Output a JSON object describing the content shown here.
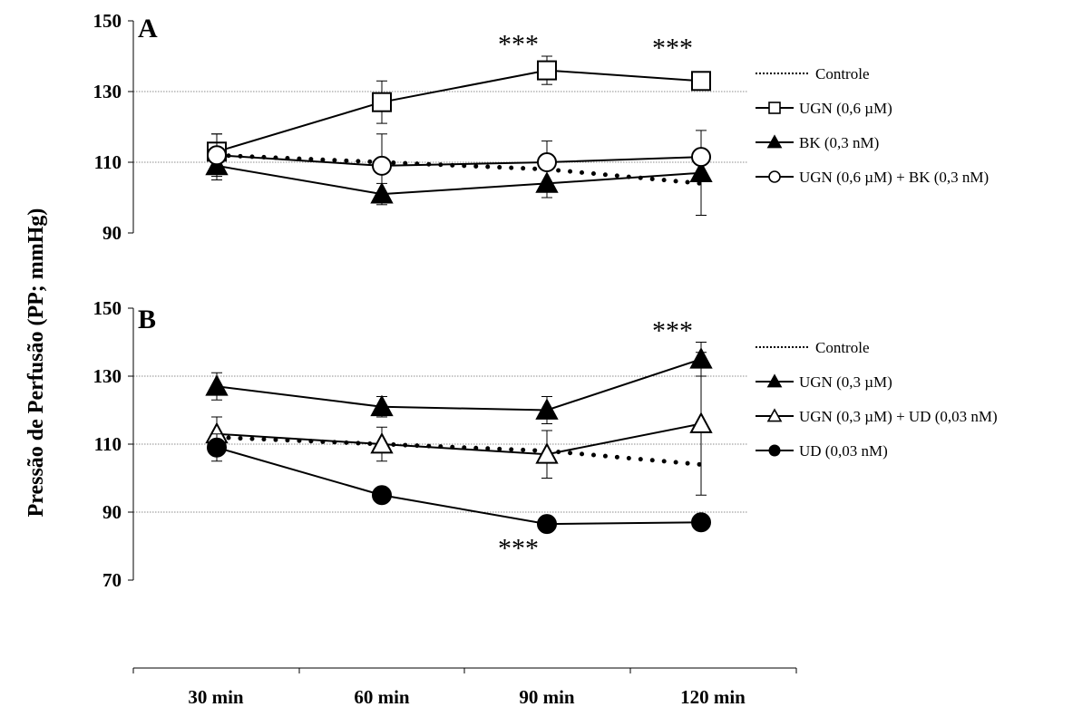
{
  "y_axis_title": "Pressão de Perfusão (PP; mmHg)",
  "x_categories": [
    "30 min",
    "60 min",
    "90 min",
    "120 min"
  ],
  "chart_data": [
    {
      "type": "line",
      "panel": "A",
      "categories": [
        "30 min",
        "60 min",
        "90 min",
        "120 min"
      ],
      "ylim": [
        90,
        150
      ],
      "yticks": [
        90,
        110,
        130,
        150
      ],
      "grid": true,
      "legend_position": "right",
      "series": [
        {
          "name": "Controle",
          "marker": "none",
          "line": "dotted",
          "values": [
            112,
            110,
            108,
            104
          ]
        },
        {
          "name": "UGN (0,6 µM)",
          "marker": "open-square",
          "line": "solid",
          "values": [
            113,
            127,
            136,
            133
          ],
          "errors": [
            5,
            6,
            4,
            2
          ]
        },
        {
          "name": "BK (0,3 nM)",
          "marker": "filled-triangle",
          "line": "solid",
          "values": [
            109,
            101,
            104,
            107
          ],
          "errors": [
            4,
            3,
            4,
            12
          ]
        },
        {
          "name": "UGN (0,6 µM) + BK (0,3 nM)",
          "marker": "open-circle",
          "line": "solid",
          "values": [
            112,
            109,
            110,
            111.5
          ],
          "errors": [
            6,
            9,
            6,
            2
          ]
        }
      ],
      "annotations": [
        {
          "text": "***",
          "category": "90 min",
          "y": 144
        },
        {
          "text": "***",
          "category": "120 min",
          "y": 143
        }
      ]
    },
    {
      "type": "line",
      "panel": "B",
      "categories": [
        "30 min",
        "60 min",
        "90 min",
        "120 min"
      ],
      "ylim": [
        70,
        150
      ],
      "yticks": [
        70,
        90,
        110,
        130,
        150
      ],
      "grid": true,
      "legend_position": "right",
      "series": [
        {
          "name": "Controle",
          "marker": "none",
          "line": "dotted",
          "values": [
            112,
            110,
            108,
            104
          ]
        },
        {
          "name": "UGN (0,3 µM)",
          "marker": "filled-triangle",
          "line": "solid",
          "values": [
            127,
            121,
            120,
            135
          ],
          "errors": [
            4,
            3,
            4,
            5
          ]
        },
        {
          "name": "UGN (0,3 µM) + UD (0,03 nM)",
          "marker": "open-triangle",
          "line": "solid",
          "values": [
            113,
            110,
            107,
            116
          ],
          "errors": [
            5,
            5,
            7,
            21
          ]
        },
        {
          "name": "UD (0,03 nM)",
          "marker": "filled-circle",
          "line": "solid",
          "values": [
            109,
            95,
            86.5,
            87
          ],
          "errors": [
            4,
            2,
            1,
            1
          ]
        }
      ],
      "annotations": [
        {
          "text": "***",
          "category": "120 min",
          "y": 144
        },
        {
          "text": "***",
          "category": "90 min",
          "y": 80
        }
      ]
    }
  ]
}
